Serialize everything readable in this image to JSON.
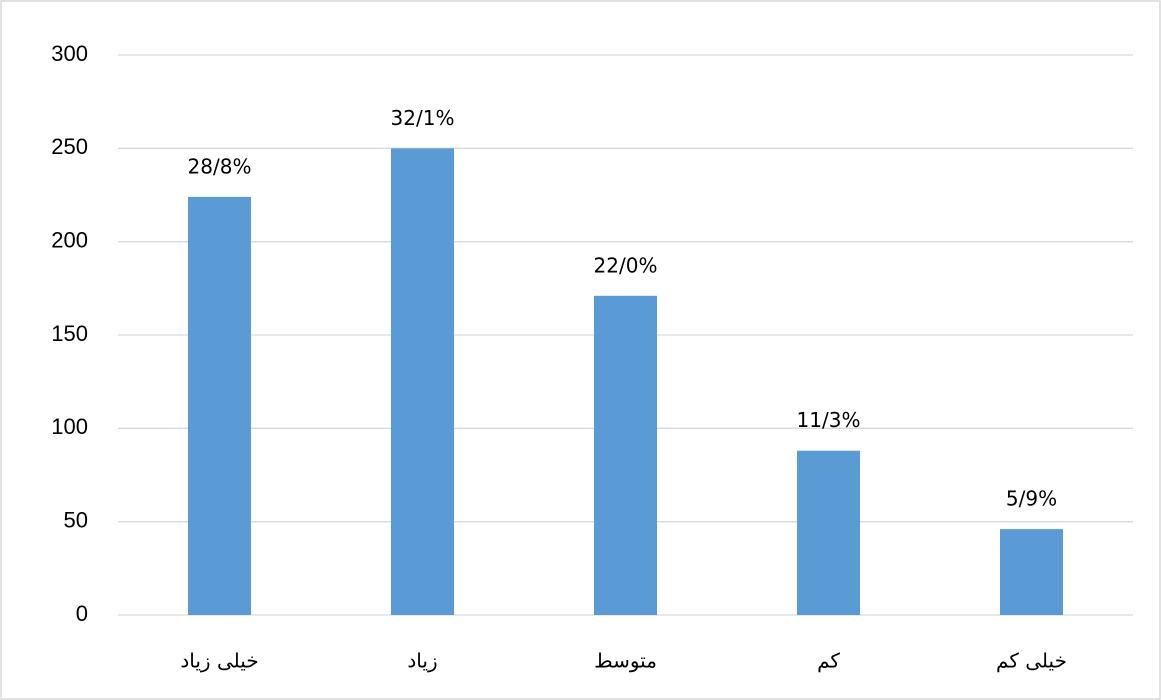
{
  "chart_data": {
    "type": "bar",
    "categories": [
      "خیلی زیاد",
      "زیاد",
      "متوسط",
      "کم",
      "خیلی کم"
    ],
    "values": [
      224,
      250,
      171,
      88,
      46
    ],
    "value_labels": [
      "28/8%",
      "32/1%",
      "22/0%",
      "11/3%",
      "5/9%"
    ],
    "color": "#5b9bd5",
    "ylim": [
      0,
      300
    ],
    "yticks": [
      0,
      50,
      100,
      150,
      200,
      250,
      300
    ],
    "grid": true
  }
}
